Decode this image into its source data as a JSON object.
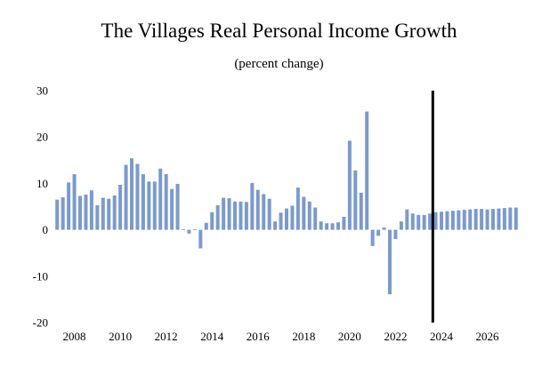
{
  "chart_data": {
    "type": "bar",
    "title": "The Villages Real Personal Income Growth",
    "subtitle": "(percent change)",
    "xlabel": "",
    "ylabel": "",
    "ylim": [
      -20,
      30
    ],
    "yticks": [
      30,
      20,
      10,
      0,
      -10,
      -20
    ],
    "ytick_labels": [
      "30",
      "20",
      "10",
      "0",
      "-10",
      "-20"
    ],
    "xtick_labels": [
      "2008",
      "2010",
      "2012",
      "2014",
      "2016",
      "2018",
      "2020",
      "2022",
      "2024",
      "2026"
    ],
    "bar_color": "#7b9acc",
    "divider_color": "#000000",
    "grid": false,
    "legend": "none",
    "divider_after_quarter": "2023Q3",
    "categories": [
      "2007Q2",
      "2007Q3",
      "2007Q4",
      "2008Q1",
      "2008Q2",
      "2008Q3",
      "2008Q4",
      "2009Q1",
      "2009Q2",
      "2009Q3",
      "2009Q4",
      "2010Q1",
      "2010Q2",
      "2010Q3",
      "2010Q4",
      "2011Q1",
      "2011Q2",
      "2011Q3",
      "2011Q4",
      "2012Q1",
      "2012Q2",
      "2012Q3",
      "2012Q4",
      "2013Q1",
      "2013Q2",
      "2013Q3",
      "2013Q4",
      "2014Q1",
      "2014Q2",
      "2014Q3",
      "2014Q4",
      "2015Q1",
      "2015Q2",
      "2015Q3",
      "2015Q4",
      "2016Q1",
      "2016Q2",
      "2016Q3",
      "2016Q4",
      "2017Q1",
      "2017Q2",
      "2017Q3",
      "2017Q4",
      "2018Q1",
      "2018Q2",
      "2018Q3",
      "2018Q4",
      "2019Q1",
      "2019Q2",
      "2019Q3",
      "2019Q4",
      "2020Q1",
      "2020Q2",
      "2020Q3",
      "2020Q4",
      "2021Q1",
      "2021Q2",
      "2021Q3",
      "2021Q4",
      "2022Q1",
      "2022Q2",
      "2022Q3",
      "2022Q4",
      "2023Q1",
      "2023Q2",
      "2023Q3",
      "2023Q4",
      "2024Q1",
      "2024Q2",
      "2024Q3",
      "2024Q4",
      "2025Q1",
      "2025Q2",
      "2025Q3",
      "2025Q4",
      "2026Q1",
      "2026Q2",
      "2026Q3",
      "2026Q4",
      "2027Q1",
      "2027Q2"
    ],
    "values": [
      6.5,
      7.0,
      10.2,
      12.0,
      7.3,
      7.6,
      8.5,
      5.3,
      6.9,
      6.7,
      7.4,
      9.7,
      14.0,
      15.4,
      14.2,
      12.0,
      10.4,
      10.4,
      13.2,
      12.0,
      8.8,
      9.9,
      0.1,
      -0.8,
      0.1,
      -4.0,
      1.5,
      3.8,
      5.3,
      6.9,
      6.8,
      6.1,
      6.1,
      6.0,
      10.1,
      8.6,
      7.7,
      6.7,
      1.8,
      3.7,
      4.6,
      5.2,
      9.1,
      7.1,
      6.1,
      4.8,
      1.8,
      1.4,
      1.4,
      1.6,
      2.8,
      19.2,
      12.8,
      8.0,
      25.5,
      -3.5,
      -1.3,
      0.5,
      -13.9,
      -2.0,
      1.8,
      4.4,
      3.5,
      3.2,
      3.2,
      3.5,
      3.8,
      3.9,
      4.0,
      4.1,
      4.2,
      4.3,
      4.4,
      4.5,
      4.5,
      4.4,
      4.5,
      4.6,
      4.7,
      4.8,
      4.8
    ]
  }
}
